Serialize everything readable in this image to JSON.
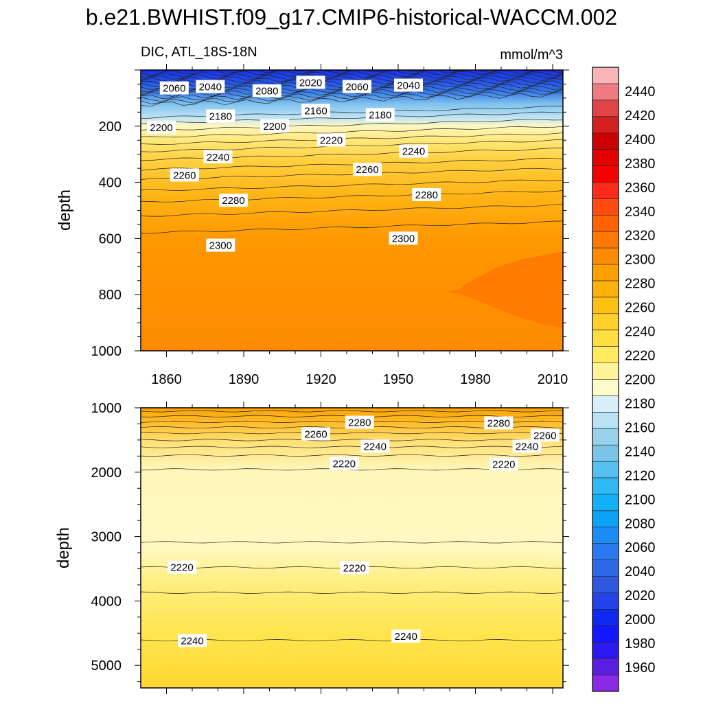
{
  "title": "b.e21.BWHIST.f09_g17.CMIP6-historical-WACCM.002",
  "left_subtitle": "DIC, ATL_18S-18N",
  "right_subtitle": "mmol/m^3",
  "chart_data": [
    {
      "type": "heatmap",
      "panel": "upper",
      "ylabel": "depth",
      "xlim": [
        1850,
        2014
      ],
      "ylim": [
        1000,
        0
      ],
      "y_reversed": true,
      "x_ticks": [
        "1860",
        "1890",
        "1920",
        "1950",
        "1980",
        "2010"
      ],
      "y_ticks": [
        "200",
        "400",
        "600",
        "800",
        "1000"
      ],
      "contour_labels": [
        {
          "text": "2060",
          "x": 1863,
          "y": 65
        },
        {
          "text": "2040",
          "x": 1877,
          "y": 60
        },
        {
          "text": "2080",
          "x": 1899,
          "y": 75
        },
        {
          "text": "2020",
          "x": 1916,
          "y": 45
        },
        {
          "text": "2060",
          "x": 1934,
          "y": 60
        },
        {
          "text": "2040",
          "x": 1954,
          "y": 55
        },
        {
          "text": "2180",
          "x": 1881,
          "y": 165
        },
        {
          "text": "2160",
          "x": 1918,
          "y": 145
        },
        {
          "text": "2180",
          "x": 1943,
          "y": 160
        },
        {
          "text": "2200",
          "x": 1858,
          "y": 205
        },
        {
          "text": "2200",
          "x": 1902,
          "y": 200
        },
        {
          "text": "2220",
          "x": 1924,
          "y": 250
        },
        {
          "text": "2240",
          "x": 1880,
          "y": 310
        },
        {
          "text": "2240",
          "x": 1956,
          "y": 290
        },
        {
          "text": "2260",
          "x": 1867,
          "y": 375
        },
        {
          "text": "2260",
          "x": 1938,
          "y": 355
        },
        {
          "text": "2280",
          "x": 1886,
          "y": 465
        },
        {
          "text": "2280",
          "x": 1961,
          "y": 445
        },
        {
          "text": "2300",
          "x": 1881,
          "y": 625
        },
        {
          "text": "2300",
          "x": 1952,
          "y": 600
        }
      ]
    },
    {
      "type": "heatmap",
      "panel": "lower",
      "ylabel": "depth",
      "xlim": [
        1850,
        2014
      ],
      "ylim": [
        5350,
        1000
      ],
      "y_reversed": true,
      "x_ticks": [],
      "y_ticks": [
        "1000",
        "2000",
        "3000",
        "4000",
        "5000"
      ],
      "contour_labels": [
        {
          "text": "2280",
          "x": 1935,
          "y": 1230
        },
        {
          "text": "2280",
          "x": 1989,
          "y": 1240
        },
        {
          "text": "2260",
          "x": 1918,
          "y": 1410
        },
        {
          "text": "2260",
          "x": 2007,
          "y": 1430
        },
        {
          "text": "2240",
          "x": 1941,
          "y": 1600
        },
        {
          "text": "2240",
          "x": 2000,
          "y": 1600
        },
        {
          "text": "2220",
          "x": 1929,
          "y": 1870
        },
        {
          "text": "2220",
          "x": 1991,
          "y": 1880
        },
        {
          "text": "2220",
          "x": 1866,
          "y": 3480
        },
        {
          "text": "2220",
          "x": 1933,
          "y": 3490
        },
        {
          "text": "2240",
          "x": 1870,
          "y": 4620
        },
        {
          "text": "2240",
          "x": 1953,
          "y": 4550
        }
      ]
    }
  ],
  "colorbar": {
    "labels": [
      "2440",
      "2420",
      "2400",
      "2380",
      "2360",
      "2340",
      "2320",
      "2300",
      "2280",
      "2260",
      "2240",
      "2220",
      "2200",
      "2180",
      "2160",
      "2140",
      "2120",
      "2100",
      "2080",
      "2060",
      "2040",
      "2020",
      "2000",
      "1980",
      "1960"
    ],
    "colors": [
      "#f8b4b8",
      "#ee7b7f",
      "#e04448",
      "#d42020",
      "#cc0000",
      "#e20000",
      "#f60000",
      "#ff2a1a",
      "#ff4a10",
      "#ff6200",
      "#ff7800",
      "#ff8c00",
      "#ffa000",
      "#ffb10a",
      "#ffc014",
      "#ffd028",
      "#ffde40",
      "#ffea60",
      "#fff39a",
      "#fffbc8",
      "#d8eef8",
      "#b9e3f5",
      "#98d1ec",
      "#7ac4e8",
      "#55bff0",
      "#30b8f2",
      "#12b0f5",
      "#0ca2f8",
      "#1c8cf5",
      "#2a78f0",
      "#2d68e6",
      "#2e58dd",
      "#2442e8",
      "#1028f0",
      "#1218ff",
      "#2c18f0",
      "#5a1ee0",
      "#8a2ae6"
    ]
  }
}
